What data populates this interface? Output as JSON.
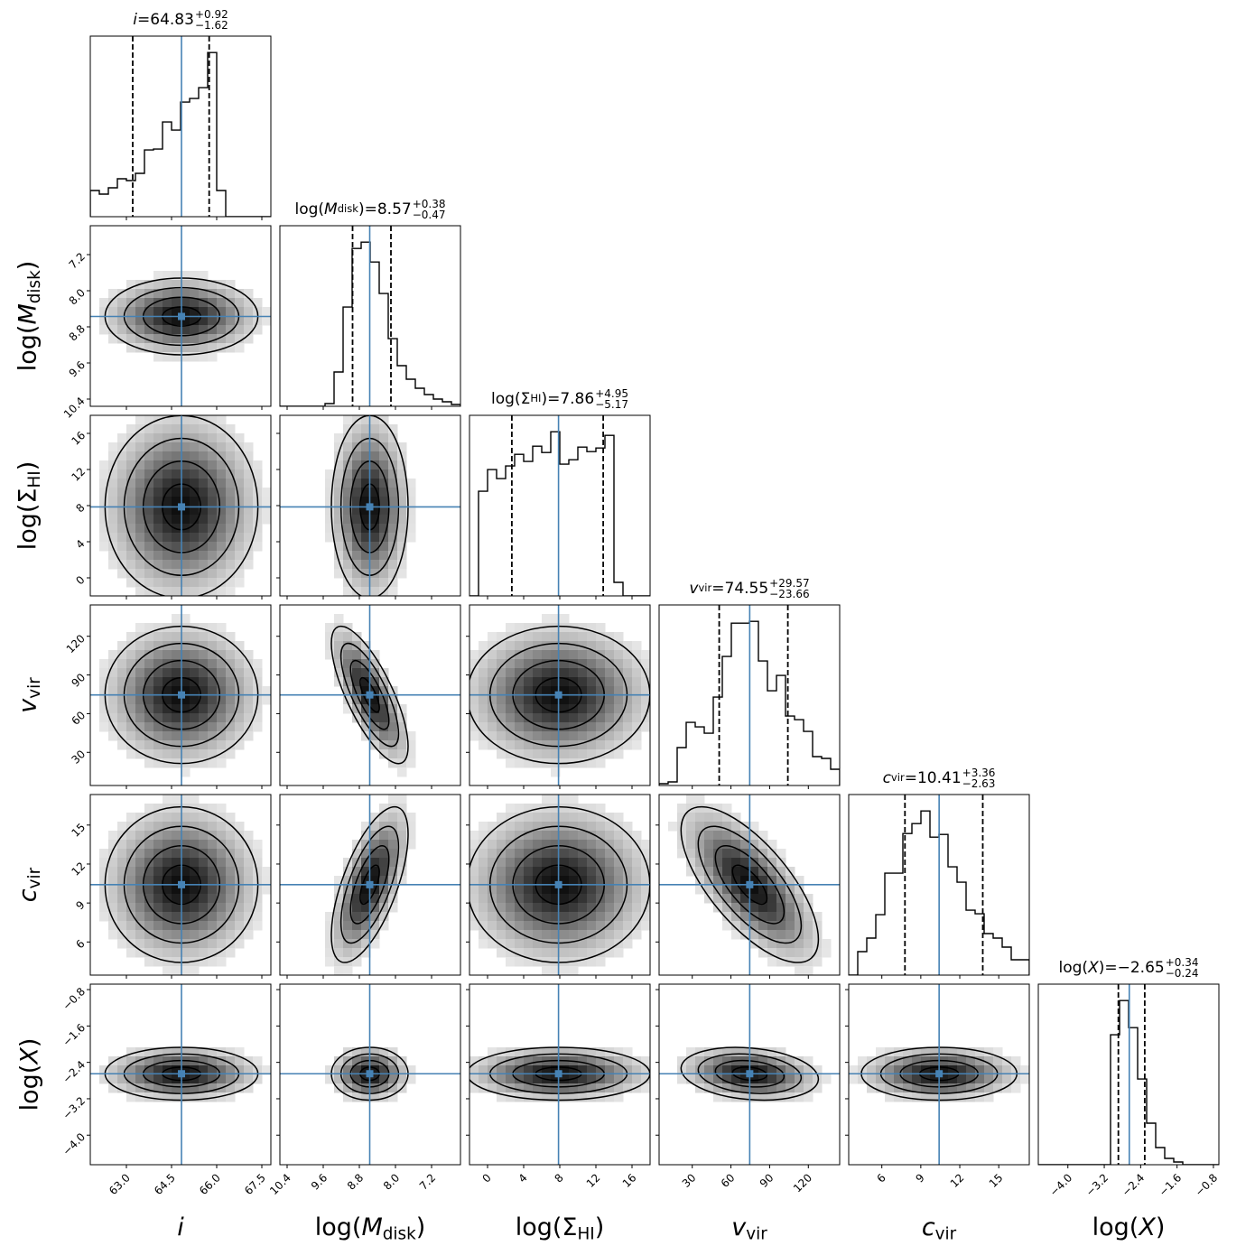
{
  "chart_data": {
    "type": "corner",
    "title": "",
    "truth_color": "#4682b4",
    "bins": 20,
    "contour_sigma_levels": [
      0.5,
      1.0,
      1.5,
      2.0
    ],
    "parameters": [
      {
        "label": {
          "pre": "",
          "sym": "i",
          "sub": "",
          "post": "",
          "italic": true
        },
        "median": "64.83",
        "plus": "+0.92",
        "minus": "−1.62",
        "range": [
          61.8,
          67.8
        ],
        "ticks": [
          "63.0",
          "64.5",
          "66.0",
          "67.5"
        ],
        "hist": [
          29,
          25,
          32,
          42,
          40,
          48,
          74,
          75,
          105,
          96,
          127,
          131,
          143,
          182,
          29,
          0,
          0,
          0,
          0,
          0
        ]
      },
      {
        "label": {
          "pre": "log(",
          "sym": "M",
          "sub": "disk",
          "post": ")",
          "italic": true
        },
        "median": "8.57",
        "plus": "+0.38",
        "minus": "−0.47",
        "range": [
          10.56,
          6.56
        ],
        "ticks": [
          "10.4",
          "9.6",
          "8.8",
          "8.0",
          "7.2"
        ],
        "hist": [
          0,
          0,
          0,
          0,
          0,
          3,
          38,
          110,
          175,
          182,
          160,
          125,
          75,
          45,
          30,
          20,
          13,
          8,
          5,
          2
        ]
      },
      {
        "label": {
          "pre": "log(",
          "sym": "Σ",
          "sub": "HI",
          "post": ")",
          "italic": false
        },
        "median": "7.86",
        "plus": "+4.95",
        "minus": "−5.17",
        "range": [
          -2,
          18
        ],
        "ticks": [
          "0",
          "4",
          "8",
          "12",
          "16"
        ],
        "hist": [
          0,
          116,
          140,
          130,
          144,
          157,
          149,
          166,
          159,
          182,
          146,
          151,
          165,
          160,
          164,
          178,
          15,
          0,
          0,
          0
        ]
      },
      {
        "label": {
          "pre": "",
          "sym": "v",
          "sub": "vir",
          "post": "",
          "italic": true
        },
        "median": "74.55",
        "plus": "+29.57",
        "minus": "−23.66",
        "range": [
          4.3,
          144.3
        ],
        "ticks": [
          "30",
          "60",
          "90",
          "120"
        ],
        "hist": [
          2,
          4,
          42,
          70,
          65,
          58,
          98,
          143,
          180,
          180,
          182,
          138,
          105,
          122,
          77,
          73,
          60,
          32,
          30,
          18
        ]
      },
      {
        "label": {
          "pre": "",
          "sym": "c",
          "sub": "vir",
          "post": "",
          "italic": true
        },
        "median": "10.41",
        "plus": "+3.36",
        "minus": "−2.63",
        "range": [
          3.45,
          17.35
        ],
        "ticks": [
          "6",
          "9",
          "12",
          "15"
        ],
        "hist": [
          0,
          26,
          41,
          67,
          113,
          113,
          157,
          168,
          182,
          153,
          156,
          120,
          103,
          72,
          68,
          46,
          41,
          31,
          17,
          17
        ]
      },
      {
        "label": {
          "pre": "log(",
          "sym": "X",
          "sub": "",
          "post": ")",
          "italic": true
        },
        "median": "−2.65",
        "plus": "+0.34",
        "minus": "−0.24",
        "range": [
          -4.65,
          -0.68
        ],
        "ticks": [
          "−4.0",
          "−3.2",
          "−2.4",
          "−1.6",
          "−0.8"
        ],
        "hist": [
          0,
          0,
          0,
          0,
          0,
          0,
          0,
          0,
          144,
          182,
          152,
          95,
          46,
          19,
          7,
          3,
          0,
          0,
          0,
          0
        ]
      }
    ],
    "correlation_matrix": [
      [
        1,
        0,
        0,
        0,
        0,
        0
      ],
      [
        0,
        1,
        0,
        0.75,
        -0.65,
        0
      ],
      [
        0,
        0,
        1,
        0,
        0,
        0
      ],
      [
        0,
        0.75,
        0,
        1,
        -0.7,
        -0.2
      ],
      [
        0,
        -0.65,
        0,
        -0.7,
        1,
        0
      ],
      [
        0,
        0,
        0,
        -0.2,
        0,
        1
      ]
    ]
  }
}
